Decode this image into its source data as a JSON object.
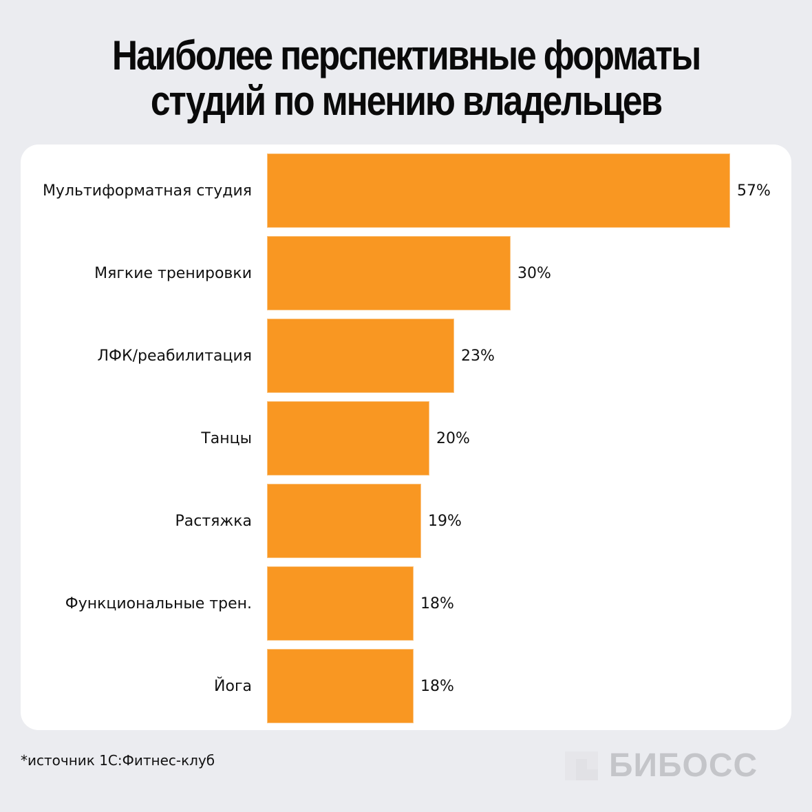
{
  "title": {
    "line1": "Наиболее перспективные форматы",
    "line2": "студий по мнению владельцев"
  },
  "chart_data": {
    "type": "bar",
    "orientation": "horizontal",
    "title": "Наиболее перспективные форматы студий по мнению владельцев",
    "xlabel": "",
    "ylabel": "",
    "unit": "%",
    "grid": false,
    "legend": null,
    "bar_color": "#f99722",
    "categories": [
      "Мультиформатная студия",
      "Мягкие тренировки",
      "ЛФК/реабилитация",
      "Танцы",
      "Растяжка",
      "Функциональные трен.",
      "Йога"
    ],
    "values": [
      57,
      30,
      23,
      20,
      19,
      18,
      18
    ],
    "value_labels": [
      "57%",
      "30%",
      "23%",
      "20%",
      "19%",
      "18%",
      "18%"
    ],
    "xlim": [
      0,
      57
    ]
  },
  "footer": {
    "source": "*источник 1С:Фитнес-клуб",
    "brand": "БИБОСС"
  },
  "colors": {
    "background": "#ebecf0",
    "card": "#ffffff",
    "bar": "#f99722",
    "brand": "#c4c5c9"
  }
}
